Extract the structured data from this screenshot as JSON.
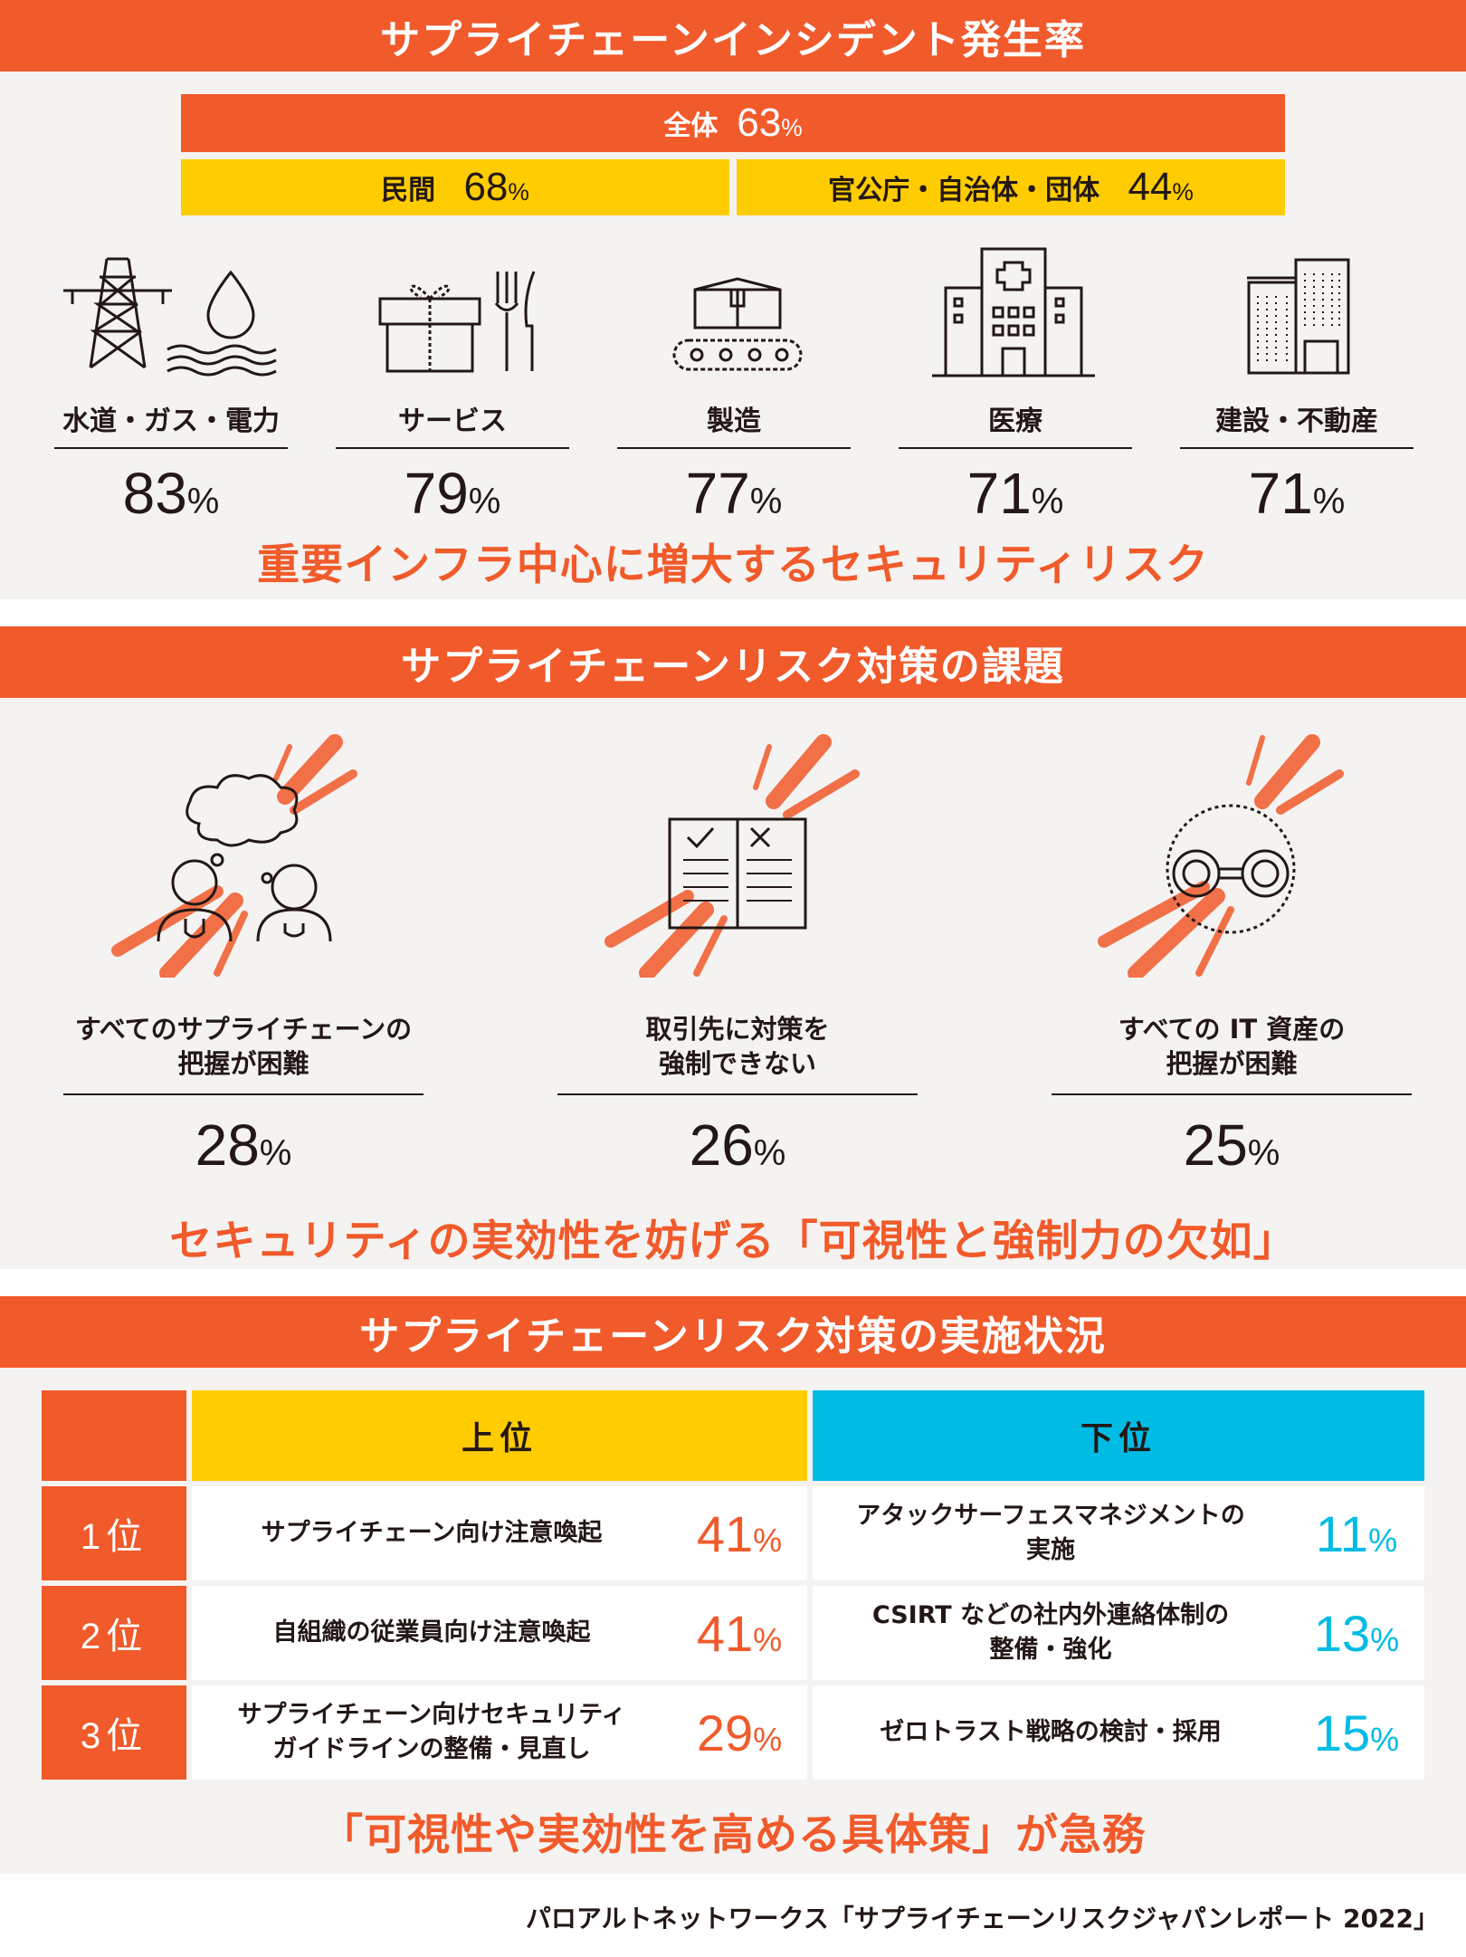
{
  "s1": {
    "title": "サプライチェーンインシデント発生率",
    "overall": {
      "label": "全体",
      "value": "63",
      "unit": "%"
    },
    "private": {
      "label": "民間",
      "value": "68",
      "unit": "%"
    },
    "public": {
      "label": "官公庁・自治体・団体",
      "value": "44",
      "unit": "%"
    },
    "industries": [
      {
        "label": "水道・ガス・電力",
        "value": "83",
        "unit": "%",
        "icon": "power-water-icon"
      },
      {
        "label": "サービス",
        "value": "79",
        "unit": "%",
        "icon": "gift-cutlery-icon"
      },
      {
        "label": "製造",
        "value": "77",
        "unit": "%",
        "icon": "conveyor-box-icon"
      },
      {
        "label": "医療",
        "value": "71",
        "unit": "%",
        "icon": "hospital-icon"
      },
      {
        "label": "建設・不動産",
        "value": "71",
        "unit": "%",
        "icon": "buildings-icon"
      }
    ],
    "tagline": "重要インフラ中心に増大するセキュリティリスク"
  },
  "s2": {
    "title": "サプライチェーンリスク対策の課題",
    "items": [
      {
        "label1": "すべてのサプライチェーンの",
        "label2": "把握が困難",
        "value": "28",
        "unit": "%",
        "icon": "people-thought-icon"
      },
      {
        "label1": "取引先に対策を",
        "label2": "強制できない",
        "value": "26",
        "unit": "%",
        "icon": "checklist-book-icon"
      },
      {
        "label1": "すべての IT 資産の",
        "label2": "把握が困難",
        "value": "25",
        "unit": "%",
        "icon": "binoculars-icon"
      }
    ],
    "tagline": "セキュリティの実効性を妨げる「可視性と強制力の欠如」"
  },
  "s3": {
    "title": "サプライチェーンリスク対策の実施状況",
    "top_header": "上位",
    "bottom_header": "下位",
    "rows": [
      {
        "rank": "1位",
        "top1": "サプライチェーン向け注意喚起",
        "top2": "",
        "topv": "41",
        "bot1": "アタックサーフェスマネジメントの",
        "bot2": "実施",
        "botv": "11"
      },
      {
        "rank": "2位",
        "top1": "自組織の従業員向け注意喚起",
        "top2": "",
        "topv": "41",
        "bot1": "CSIRT などの社内外連絡体制の",
        "bot2": "整備・強化",
        "botv": "13"
      },
      {
        "rank": "3位",
        "top1": "サプライチェーン向けセキュリティ",
        "top2": "ガイドラインの整備・見直し",
        "topv": "29",
        "bot1": "ゼロトラスト戦略の検討・採用",
        "bot2": "",
        "botv": "15"
      }
    ],
    "unit": "%",
    "tagline": "「可視性や実効性を高める具体策」が急務"
  },
  "source": "パロアルトネットワークス「サプライチェーンリスクジャパンレポート 2022」",
  "colors": {
    "orange": "#f15a2b",
    "yellow": "#fecc00",
    "cyan": "#00bce4"
  }
}
